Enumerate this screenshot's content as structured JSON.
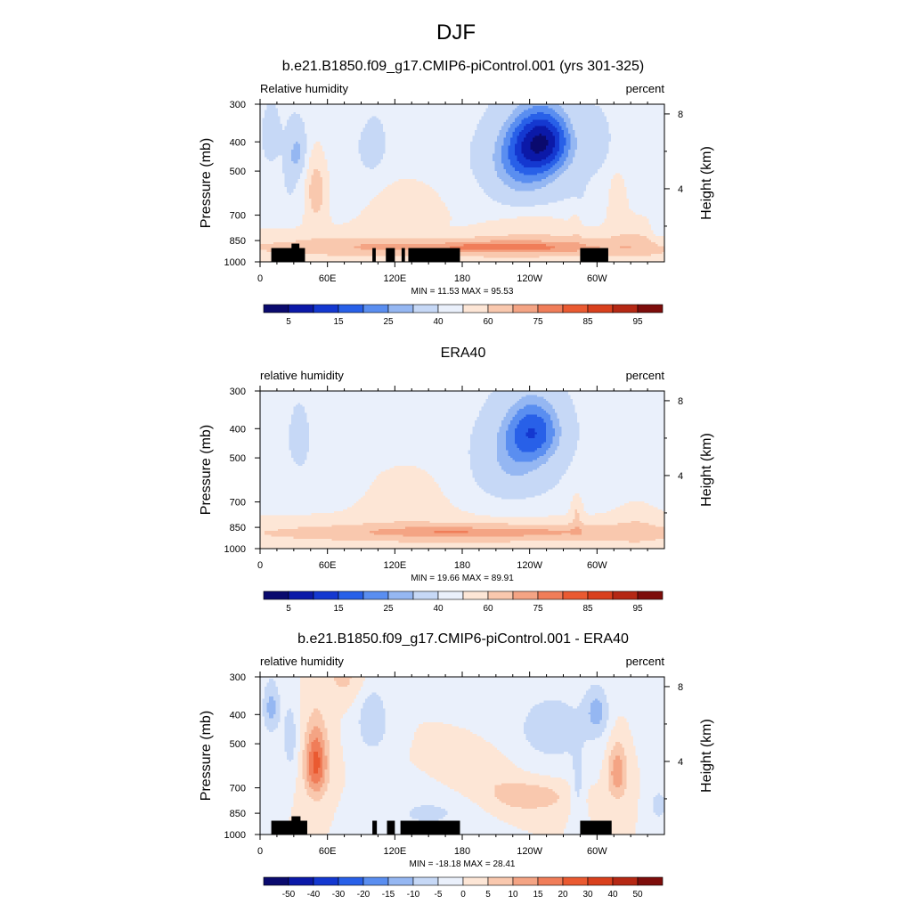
{
  "figure": {
    "title": "DJF"
  },
  "chart_data": [
    {
      "type": "heatmap",
      "title": "b.e21.B1850.f09_g17.CMIP6-piControl.001 (yrs 301-325)",
      "left_label": "Relative humidity",
      "right_label": "percent",
      "ylabel": "Pressure (mb)",
      "ylabel_right": "Height (km)",
      "x_ticks": [
        "0",
        "60E",
        "120E",
        "180",
        "120W",
        "60W"
      ],
      "x_tick_values": [
        0,
        60,
        120,
        180,
        240,
        300
      ],
      "xlim": [
        0,
        360
      ],
      "y_ticks": [
        "300",
        "400",
        "500",
        "700",
        "850",
        "1000"
      ],
      "y_tick_values": [
        300,
        400,
        500,
        700,
        850,
        1000
      ],
      "ylim": [
        1000,
        300
      ],
      "y_scale": "log",
      "height_ticks": [
        "8",
        "4"
      ],
      "height_tick_values": [
        8,
        4
      ],
      "min_max_text": "MIN = 11.53 MAX = 95.53",
      "min": 11.53,
      "max": 95.53,
      "colorbar": {
        "levels": [
          0,
          5,
          10,
          15,
          20,
          25,
          30,
          40,
          50,
          60,
          70,
          75,
          80,
          85,
          90,
          95,
          100
        ],
        "labels": [
          "5",
          "15",
          "25",
          "40",
          "60",
          "75",
          "85",
          "95"
        ],
        "label_after_box": [
          0,
          2,
          4,
          6,
          8,
          10,
          12,
          14
        ]
      },
      "topography": [
        {
          "lon": [
            10,
            40
          ],
          "p_top": 900
        },
        {
          "lon": [
            28,
            35
          ],
          "p_top": 870
        },
        {
          "lon": [
            100,
            103
          ],
          "p_top": 900
        },
        {
          "lon": [
            112,
            120
          ],
          "p_top": 900
        },
        {
          "lon": [
            126,
            129
          ],
          "p_top": 900
        },
        {
          "lon": [
            132,
            178
          ],
          "p_top": 900
        },
        {
          "lon": [
            285,
            310
          ],
          "p_top": 900
        }
      ]
    },
    {
      "type": "heatmap",
      "title": "ERA40",
      "left_label": "relative humidity",
      "right_label": "percent",
      "ylabel": "Pressure (mb)",
      "ylabel_right": "Height (km)",
      "x_ticks": [
        "0",
        "60E",
        "120E",
        "180",
        "120W",
        "60W"
      ],
      "x_tick_values": [
        0,
        60,
        120,
        180,
        240,
        300
      ],
      "xlim": [
        0,
        360
      ],
      "y_ticks": [
        "300",
        "400",
        "500",
        "700",
        "850",
        "1000"
      ],
      "y_tick_values": [
        300,
        400,
        500,
        700,
        850,
        1000
      ],
      "ylim": [
        1000,
        300
      ],
      "y_scale": "log",
      "height_ticks": [
        "8",
        "4"
      ],
      "height_tick_values": [
        8,
        4
      ],
      "min_max_text": "MIN = 19.66 MAX = 89.91",
      "min": 19.66,
      "max": 89.91,
      "colorbar": {
        "levels": [
          0,
          5,
          10,
          15,
          20,
          25,
          30,
          40,
          50,
          60,
          70,
          75,
          80,
          85,
          90,
          95,
          100
        ],
        "labels": [
          "5",
          "15",
          "25",
          "40",
          "60",
          "75",
          "85",
          "95"
        ],
        "label_after_box": [
          0,
          2,
          4,
          6,
          8,
          10,
          12,
          14
        ]
      },
      "topography": []
    },
    {
      "type": "heatmap",
      "title": "b.e21.B1850.f09_g17.CMIP6-piControl.001 - ERA40",
      "left_label": "relative humidity",
      "right_label": "percent",
      "ylabel": "Pressure (mb)",
      "ylabel_right": "Height (km)",
      "x_ticks": [
        "0",
        "60E",
        "120E",
        "180",
        "120W",
        "60W"
      ],
      "x_tick_values": [
        0,
        60,
        120,
        180,
        240,
        300
      ],
      "xlim": [
        0,
        360
      ],
      "y_ticks": [
        "300",
        "400",
        "500",
        "700",
        "850",
        "1000"
      ],
      "y_tick_values": [
        300,
        400,
        500,
        700,
        850,
        1000
      ],
      "ylim": [
        1000,
        300
      ],
      "y_scale": "log",
      "height_ticks": [
        "8",
        "4"
      ],
      "height_tick_values": [
        8,
        4
      ],
      "min_max_text": "MIN = -18.18 MAX = 28.41",
      "min": -18.18,
      "max": 28.41,
      "colorbar": {
        "levels": [
          -60,
          -50,
          -40,
          -30,
          -20,
          -15,
          -10,
          -5,
          0,
          5,
          10,
          15,
          20,
          30,
          40,
          50,
          60
        ],
        "labels": [
          "-50",
          "-40",
          "-30",
          "-20",
          "-15",
          "-10",
          "-5",
          "0",
          "5",
          "10",
          "15",
          "20",
          "30",
          "40",
          "50"
        ],
        "label_after_box": [
          0,
          1,
          2,
          3,
          4,
          5,
          6,
          7,
          8,
          9,
          10,
          11,
          12,
          13,
          14
        ]
      },
      "topography": [
        {
          "lon": [
            10,
            42
          ],
          "p_top": 900
        },
        {
          "lon": [
            28,
            36
          ],
          "p_top": 870
        },
        {
          "lon": [
            100,
            104
          ],
          "p_top": 900
        },
        {
          "lon": [
            113,
            120
          ],
          "p_top": 900
        },
        {
          "lon": [
            125,
            178
          ],
          "p_top": 900
        },
        {
          "lon": [
            285,
            313
          ],
          "p_top": 900
        }
      ]
    }
  ],
  "colors": {
    "palette": [
      "#0a0a6e",
      "#0b19a8",
      "#1438d0",
      "#2860e8",
      "#5a8ef0",
      "#95b7f2",
      "#c6d8f6",
      "#eaf0fb",
      "#fde6d6",
      "#f9c8ae",
      "#f4a484",
      "#f07d59",
      "#ea5a31",
      "#d9401d",
      "#b52814",
      "#7d0d0b"
    ],
    "topography": "#000000"
  }
}
